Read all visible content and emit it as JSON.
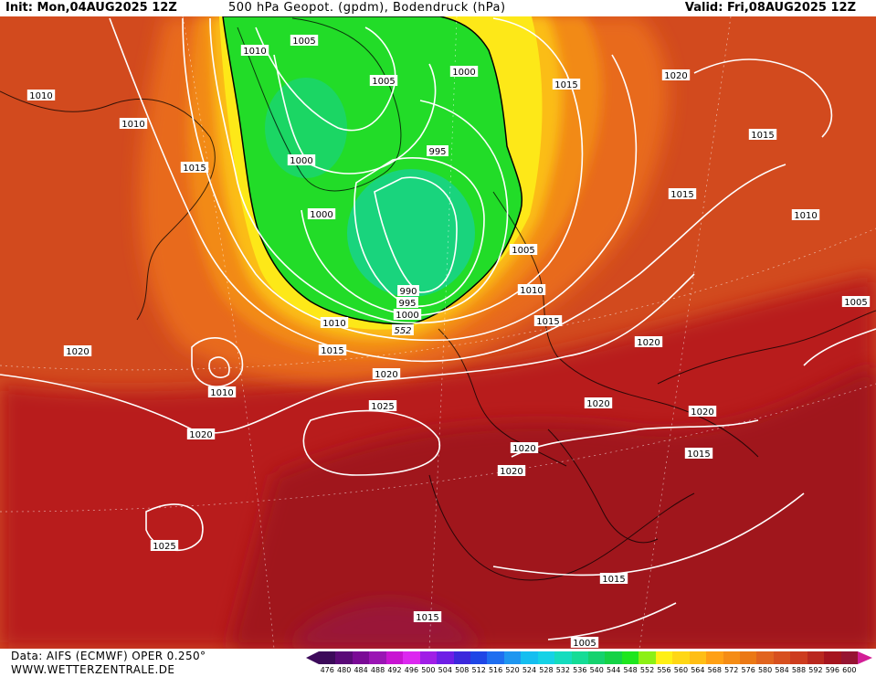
{
  "header": {
    "init": "Init: Mon,04AUG2025 12Z",
    "title": "500 hPa Geopot. (gpdm), Bodendruck (hPa)",
    "valid": "Valid: Fri,08AUG2025 12Z"
  },
  "footer": {
    "source": "Data: AIFS (ECMWF) OPER 0.250°",
    "site": "WWW.WETTERZENTRALE.DE"
  },
  "legend": {
    "ticks": [
      "476",
      "480",
      "484",
      "488",
      "492",
      "496",
      "500",
      "504",
      "508",
      "512",
      "516",
      "520",
      "524",
      "528",
      "532",
      "536",
      "540",
      "544",
      "548",
      "552",
      "556",
      "560",
      "564",
      "568",
      "572",
      "576",
      "580",
      "584",
      "588",
      "592",
      "596",
      "600"
    ],
    "colors": [
      "#3c0a5a",
      "#5a0a78",
      "#7a0a96",
      "#9a14b4",
      "#c814d2",
      "#dc28f0",
      "#a01ee6",
      "#6e1ee6",
      "#3c28dc",
      "#1e46e6",
      "#1e6ef0",
      "#1e96f0",
      "#14bef0",
      "#14d2e6",
      "#14dcbe",
      "#14dc96",
      "#14d26e",
      "#14d246",
      "#1ee61e",
      "#8cf014",
      "#fff014",
      "#ffd714",
      "#ffbe14",
      "#ffa014",
      "#f58c14",
      "#eb7814",
      "#e1641e",
      "#d7501e",
      "#cd3c1e",
      "#b9281e",
      "#a5141e",
      "#961432"
    ],
    "underflow_color": "#3c0a5a",
    "overflow_color": "#d21e96"
  },
  "map": {
    "fill_colors": {
      "ocean_base": "#d24a1e",
      "low_orange": "#e86a1a",
      "mid_orange": "#f28a14",
      "yellow_band": "#fde818",
      "gold_band": "#fbbd14",
      "green_low": "#22dc28",
      "green_core": "#18d28c",
      "high_red": "#b81e1e",
      "deep_red": "#a0141e",
      "crimson": "#9a1438"
    },
    "isobar_labels": [
      "1005",
      "1010",
      "1005",
      "1000",
      "995",
      "1000",
      "1000",
      "990",
      "995",
      "1000",
      "552",
      "1015",
      "1010",
      "1015",
      "1010",
      "1015",
      "1020",
      "1015",
      "1005",
      "1010",
      "1015",
      "1010",
      "1015",
      "1020",
      "1025",
      "1020",
      "1020",
      "1020",
      "1020",
      "1020",
      "1015",
      "1005",
      "1010",
      "1020",
      "1020",
      "1025",
      "1015",
      "1015",
      "1010",
      "1005"
    ]
  }
}
